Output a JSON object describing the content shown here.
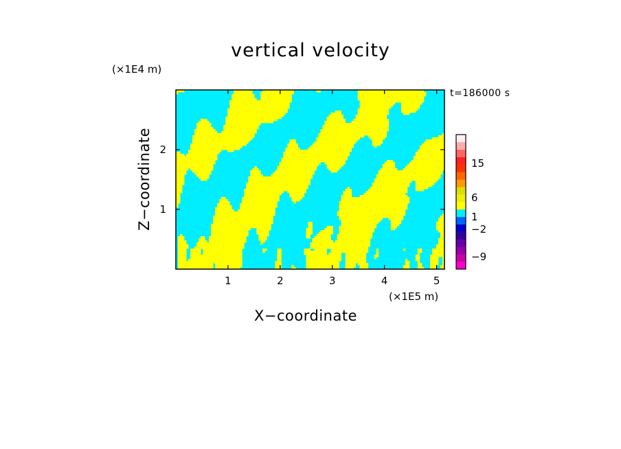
{
  "chart_data": {
    "type": "heatmap",
    "title": "vertical velocity",
    "time_label": "t=186000 s",
    "xlabel": "X−coordinate",
    "ylabel": "Z−coordinate",
    "x_unit": "(×1E5 m)",
    "y_unit": "(×1E4 m)",
    "xlim": [
      0,
      5.15
    ],
    "ylim": [
      0,
      3.0
    ],
    "x_ticks": [
      1,
      2,
      3,
      4,
      5
    ],
    "y_ticks": [
      1,
      2
    ],
    "colorbar": {
      "labels": [
        "15",
        "6",
        "1",
        "−2",
        "−9"
      ],
      "colors": [
        "#ff00cc",
        "#cc00aa",
        "#9900aa",
        "#6600aa",
        "#330099",
        "#0000cc",
        "#0066ff",
        "#00eeff",
        "#ffff00",
        "#eeee00",
        "#dddd00",
        "#ff9900",
        "#ff6600",
        "#ff3300",
        "#ff2222",
        "#ff6666",
        "#ffaaaa",
        "#ffeeee"
      ],
      "dominant_colors": {
        "positive": "#ffff00",
        "negative": "#00eeff"
      }
    }
  }
}
